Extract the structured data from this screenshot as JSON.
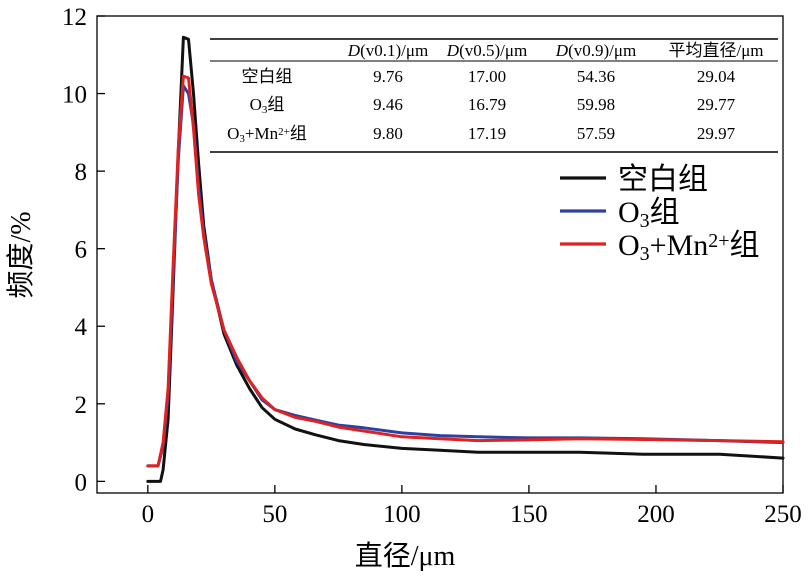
{
  "chart_data": {
    "type": "line",
    "xlabel": "直径/μm",
    "ylabel": "频度/%",
    "xlim": [
      -20,
      250
    ],
    "ylim": [
      -0.3,
      12
    ],
    "xticks": [
      0,
      50,
      100,
      150,
      200,
      250
    ],
    "yticks": [
      0,
      2,
      4,
      6,
      8,
      10,
      12
    ],
    "xtick_labels": [
      "0",
      "50",
      "100",
      "150",
      "200",
      "250"
    ],
    "ytick_labels": [
      "0",
      "2",
      "4",
      "6",
      "8",
      "10",
      "12"
    ],
    "legend_position": "right",
    "grid": false,
    "series": [
      {
        "name": "空白组",
        "color": "#111111",
        "x": [
          0,
          5,
          6,
          8,
          10,
          12,
          14,
          16,
          18,
          20,
          22,
          25,
          30,
          35,
          40,
          45,
          50,
          58,
          66,
          75,
          85,
          100,
          115,
          130,
          150,
          170,
          195,
          225,
          250
        ],
        "y": [
          0,
          0,
          0.3,
          1.6,
          5.0,
          8.5,
          11.45,
          11.4,
          10.0,
          8.2,
          6.6,
          5.2,
          3.8,
          3.0,
          2.4,
          1.9,
          1.6,
          1.35,
          1.2,
          1.05,
          0.95,
          0.85,
          0.8,
          0.75,
          0.75,
          0.75,
          0.7,
          0.7,
          0.6
        ]
      },
      {
        "name": "O₃组",
        "color": "#3040a0",
        "x": [
          0,
          4,
          6,
          8,
          10,
          12,
          14,
          16,
          18,
          20,
          22,
          25,
          30,
          35,
          40,
          45,
          50,
          58,
          66,
          75,
          85,
          100,
          115,
          130,
          150,
          170,
          195,
          225,
          250
        ],
        "y": [
          0.4,
          0.4,
          0.9,
          2.2,
          5.3,
          8.3,
          10.2,
          10.0,
          9.2,
          7.6,
          6.4,
          5.2,
          3.9,
          3.1,
          2.6,
          2.1,
          1.85,
          1.7,
          1.58,
          1.45,
          1.38,
          1.25,
          1.18,
          1.15,
          1.12,
          1.12,
          1.1,
          1.05,
          1.0
        ]
      },
      {
        "name": "O₃+Mn²⁺组",
        "color": "#dd2222",
        "x": [
          0,
          4,
          6,
          8,
          10,
          12,
          14,
          16,
          18,
          20,
          22,
          25,
          30,
          35,
          40,
          45,
          50,
          58,
          66,
          75,
          85,
          100,
          115,
          130,
          150,
          170,
          195,
          225,
          250
        ],
        "y": [
          0.4,
          0.4,
          1.0,
          2.4,
          5.6,
          8.6,
          10.45,
          10.4,
          9.1,
          7.4,
          6.3,
          5.1,
          3.9,
          3.2,
          2.6,
          2.15,
          1.85,
          1.65,
          1.55,
          1.4,
          1.3,
          1.15,
          1.1,
          1.05,
          1.07,
          1.1,
          1.08,
          1.05,
          1.02
        ]
      }
    ],
    "table": {
      "headers": [
        {
          "italic": "D",
          "rest": "(v0.1)/μm"
        },
        {
          "italic": "D",
          "rest": "(v0.5)/μm"
        },
        {
          "italic": "D",
          "rest": "(v0.9)/μm"
        },
        {
          "italic": "",
          "rest": "平均直径/μm"
        }
      ],
      "rows": [
        {
          "label": "空白组",
          "values": [
            "9.76",
            "17.00",
            "54.36",
            "29.04"
          ]
        },
        {
          "label": "O₃组",
          "values": [
            "9.46",
            "16.79",
            "59.98",
            "29.77"
          ]
        },
        {
          "label": "O₃+Mn²⁺组",
          "values": [
            "9.80",
            "17.19",
            "57.59",
            "29.97"
          ]
        }
      ]
    }
  }
}
